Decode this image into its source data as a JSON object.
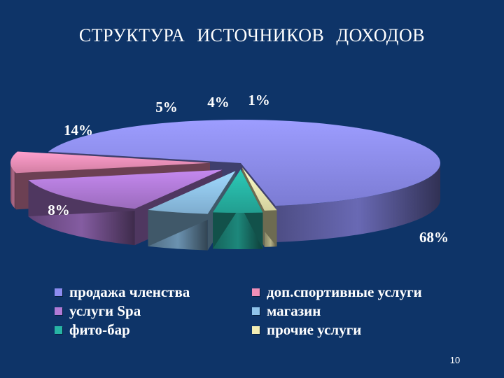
{
  "slide": {
    "title": "СТРУКТУРА   ИСТОЧНИКОВ   ДОХОДОВ",
    "page_number": "10"
  },
  "chart_data": {
    "type": "pie",
    "style": "3d-exploded",
    "title": "СТРУКТУРА   ИСТОЧНИКОВ   ДОХОДОВ",
    "legend_position": "bottom",
    "slices": [
      {
        "label": "продажа членства",
        "value": 68,
        "value_label": "68%",
        "color": "#8c8cf0"
      },
      {
        "label": "доп.спортивные услуги",
        "value": 8,
        "value_label": "8%",
        "color": "#ef8fb8"
      },
      {
        "label": "услуги Spa",
        "value": 14,
        "value_label": "14%",
        "color": "#b07ad6"
      },
      {
        "label": "магазин",
        "value": 5,
        "value_label": "5%",
        "color": "#8fc3ea"
      },
      {
        "label": "фито-бар",
        "value": 4,
        "value_label": "4%",
        "color": "#27b4a4"
      },
      {
        "label": "прочие услуги",
        "value": 1,
        "value_label": "1%",
        "color": "#f2edb4"
      }
    ]
  }
}
